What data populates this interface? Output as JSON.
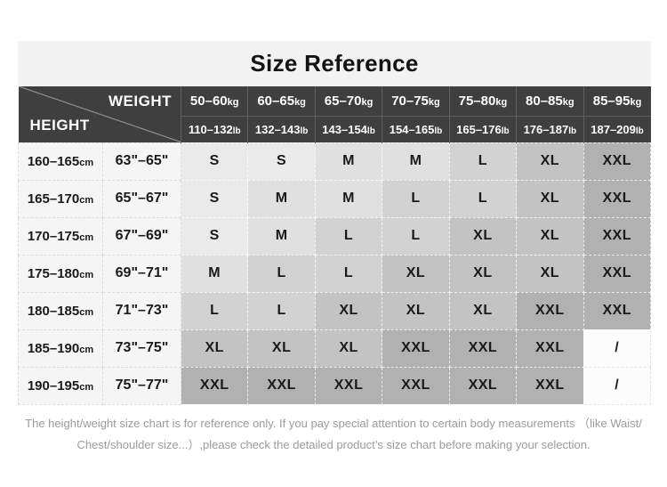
{
  "title": "Size Reference",
  "units": {
    "kg": "kg",
    "lb": "lb",
    "cm": "cm"
  },
  "chart_data": {
    "type": "table",
    "title": "Size Reference",
    "column_axis_label": "WEIGHT",
    "row_axis_label": "HEIGHT",
    "columns": [
      {
        "kg": "50–60",
        "lb": "110–132"
      },
      {
        "kg": "60–65",
        "lb": "132–143"
      },
      {
        "kg": "65–70",
        "lb": "143–154"
      },
      {
        "kg": "70–75",
        "lb": "154–165"
      },
      {
        "kg": "75–80",
        "lb": "165–176"
      },
      {
        "kg": "80–85",
        "lb": "176–187"
      },
      {
        "kg": "85–95",
        "lb": "187–209"
      }
    ],
    "rows": [
      {
        "cm": "160–165",
        "inches": "63\"–65\"",
        "sizes": [
          "S",
          "S",
          "M",
          "M",
          "L",
          "XL",
          "XXL"
        ]
      },
      {
        "cm": "165–170",
        "inches": "65\"–67\"",
        "sizes": [
          "S",
          "M",
          "M",
          "L",
          "L",
          "XL",
          "XXL"
        ]
      },
      {
        "cm": "170–175",
        "inches": "67\"–69\"",
        "sizes": [
          "S",
          "M",
          "L",
          "L",
          "XL",
          "XL",
          "XXL"
        ]
      },
      {
        "cm": "175–180",
        "inches": "69\"–71\"",
        "sizes": [
          "M",
          "L",
          "L",
          "XL",
          "XL",
          "XL",
          "XXL"
        ]
      },
      {
        "cm": "180–185",
        "inches": "71\"–73\"",
        "sizes": [
          "L",
          "L",
          "XL",
          "XL",
          "XL",
          "XXL",
          "XXL"
        ]
      },
      {
        "cm": "185–190",
        "inches": "73\"–75\"",
        "sizes": [
          "XL",
          "XL",
          "XL",
          "XXL",
          "XXL",
          "XXL",
          "/"
        ]
      },
      {
        "cm": "190–195",
        "inches": "75\"–77\"",
        "sizes": [
          "XXL",
          "XXL",
          "XXL",
          "XXL",
          "XXL",
          "XXL",
          "/"
        ]
      }
    ]
  },
  "size_colors": {
    "S": "#eaeaea",
    "M": "#e0e0e0",
    "L": "#d2d2d2",
    "XL": "#c3c3c3",
    "XXL": "#b1b1b1",
    "/": "#fcfcfc"
  },
  "colors": {
    "header_bg": "#3f3f3f",
    "header_text": "#ffffff",
    "title_band_bg": "#f2f2f2",
    "left_col_bg": "#f5f5f5",
    "body_text": "#1a1a1a",
    "footer_text": "#9b9b9b",
    "diagonal_line": "#8f8f8f"
  },
  "footer": {
    "line1": "The height/weight size chart is for reference only. If you pay special attention to certain body measurements （like Waist/",
    "line2": "Chest/shoulder size...）,please check the detailed product’s size chart before making your selection."
  }
}
